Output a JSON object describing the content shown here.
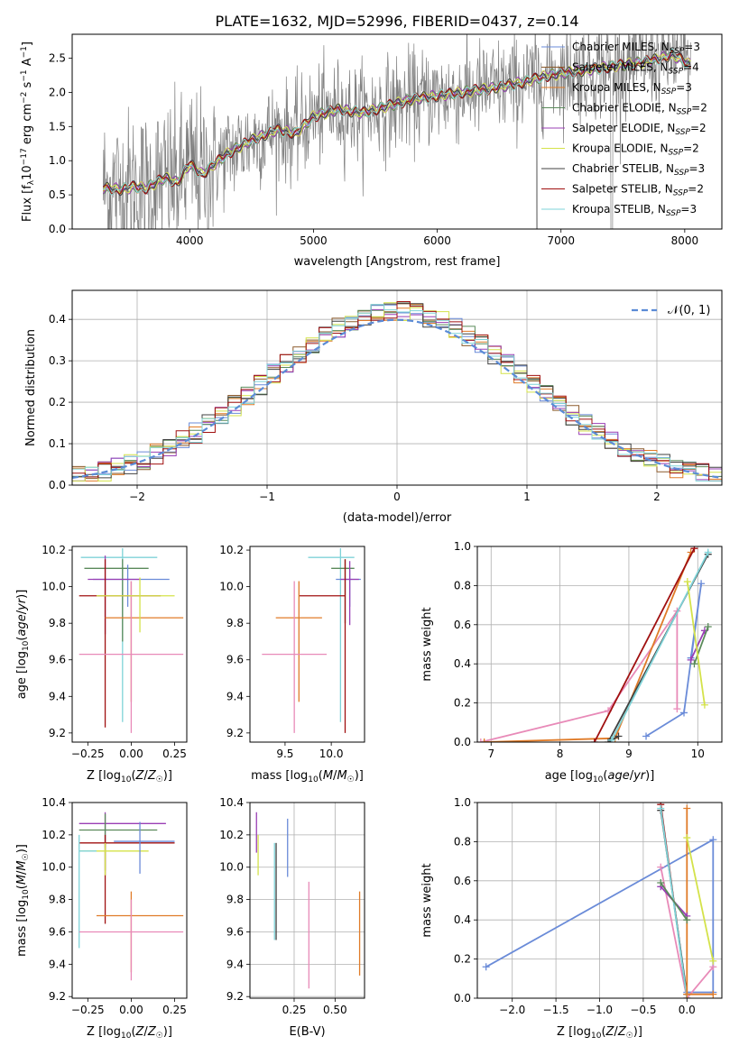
{
  "figure_title": "PLATE=1632, MJD=52996, FIBERID=0437, z=0.14",
  "colors": {
    "chabrier_miles": "#6a8bd8",
    "salpeter_miles": "#8b5a2b",
    "kroupa_miles": "#e07b28",
    "chabrier_elodie": "#5a8a5a",
    "salpeter_elodie": "#9a3fb5",
    "kroupa_elodie": "#d4e24a",
    "chabrier_stelib": "#404040",
    "salpeter_stelib": "#a01010",
    "kroupa_stelib": "#7fd3d8",
    "pink": "#e88ab8",
    "data": "#808080",
    "normal": "#5b8bd6"
  },
  "legend_main": [
    {
      "label": "Chabrier MILES, N",
      "sub": "SSP",
      "tail": "=3",
      "color": "#6a8bd8"
    },
    {
      "label": "Salpeter MILES, N",
      "sub": "SSP",
      "tail": "=4",
      "color": "#8b5a2b"
    },
    {
      "label": "Kroupa MILES, N",
      "sub": "SSP",
      "tail": "=3",
      "color": "#e07b28"
    },
    {
      "label": "Chabrier ELODIE, N",
      "sub": "SSP",
      "tail": "=2",
      "color": "#5a8a5a"
    },
    {
      "label": "Salpeter ELODIE, N",
      "sub": "SSP",
      "tail": "=2",
      "color": "#9a3fb5"
    },
    {
      "label": "Kroupa ELODIE, N",
      "sub": "SSP",
      "tail": "=2",
      "color": "#d4e24a"
    },
    {
      "label": "Chabrier STELIB, N",
      "sub": "SSP",
      "tail": "=3",
      "color": "#404040"
    },
    {
      "label": "Salpeter STELIB, N",
      "sub": "SSP",
      "tail": "=2",
      "color": "#a01010"
    },
    {
      "label": "Kroupa STELIB, N",
      "sub": "SSP",
      "tail": "=3",
      "color": "#7fd3d8"
    }
  ],
  "legend_hist": "𝒩(0, 1)",
  "chart_data": [
    {
      "id": "spectrum",
      "type": "line",
      "xlabel": "wavelength [Angstrom, rest frame]",
      "ylabel": "Flux [f_λ 10^-17 erg cm^-2 s^-1 A^-1]",
      "xlim": [
        3050,
        8300
      ],
      "ylim": [
        0,
        2.85
      ],
      "xticks": [
        4000,
        5000,
        6000,
        7000,
        8000
      ],
      "yticks": [
        0.0,
        0.5,
        1.0,
        1.5,
        2.0,
        2.5
      ],
      "grid": false,
      "legend_position": "upper right",
      "model_anchors": {
        "x": [
          3300,
          3450,
          3550,
          3650,
          3800,
          3900,
          4000,
          4100,
          4300,
          4500,
          4700,
          4860,
          5000,
          5200,
          5400,
          5600,
          5800,
          6000,
          6200,
          6400,
          6563,
          6700,
          6900,
          7100,
          7300,
          7500,
          7700,
          7900,
          8050
        ],
        "y": [
          0.6,
          0.58,
          0.62,
          0.6,
          0.75,
          0.68,
          0.95,
          0.8,
          1.1,
          1.3,
          1.45,
          1.4,
          1.65,
          1.75,
          1.7,
          1.8,
          1.9,
          1.95,
          2.0,
          2.05,
          2.1,
          2.15,
          2.25,
          2.3,
          2.35,
          2.4,
          2.45,
          2.55,
          2.4
        ]
      },
      "data_noise": 0.45
    },
    {
      "id": "residual_hist",
      "type": "line",
      "xlabel": "(data-model)/error",
      "ylabel": "Normed distribution",
      "xlim": [
        -2.5,
        2.5
      ],
      "ylim": [
        0,
        0.47
      ],
      "xticks": [
        -2,
        -1,
        0,
        1,
        2
      ],
      "yticks": [
        0.0,
        0.1,
        0.2,
        0.3,
        0.4
      ],
      "grid": true,
      "legend_position": "upper right",
      "bin_width": 0.1,
      "bins_from": -2.5,
      "bins_to": 2.5
    },
    {
      "id": "age_vs_Z",
      "type": "scatter",
      "xlabel": "Z [log10(Z/Z☉)]",
      "ylabel": "age [log10(age/yr)]",
      "xlim": [
        -0.34,
        0.32
      ],
      "ylim": [
        9.15,
        10.22
      ],
      "xticks": [
        -0.25,
        0.0,
        0.25
      ],
      "yticks": [
        9.2,
        9.4,
        9.6,
        9.8,
        10.0,
        10.2
      ],
      "grid": false,
      "errorbars": [
        {
          "series": "kroupa_stelib",
          "x": -0.05,
          "y": 10.16,
          "xerr": [
            0.24,
            0.2
          ],
          "yerr": [
            0.9,
            0.05
          ]
        },
        {
          "series": "chabrier_elodie",
          "x": -0.05,
          "y": 10.1,
          "xerr": [
            0.22,
            0.15
          ],
          "yerr": [
            0.4,
            0.05
          ]
        },
        {
          "series": "chabrier_miles",
          "x": -0.02,
          "y": 10.04,
          "xerr": [
            0.2,
            0.24
          ],
          "yerr": [
            0.15,
            0.08
          ]
        },
        {
          "series": "salpeter_elodie",
          "x": -0.15,
          "y": 10.04,
          "xerr": [
            0.1,
            0.2
          ],
          "yerr": [
            0.3,
            0.13
          ]
        },
        {
          "series": "salpeter_stelib",
          "x": -0.15,
          "y": 9.95,
          "xerr": [
            0.15,
            0.32
          ],
          "yerr": [
            0.72,
            0.2
          ]
        },
        {
          "series": "kroupa_miles",
          "x": 0.0,
          "y": 9.83,
          "xerr": [
            0.15,
            0.3
          ],
          "yerr": [
            0.46,
            0.2
          ]
        },
        {
          "series": "pink",
          "x": 0.0,
          "y": 9.63,
          "xerr": [
            0.3,
            0.3
          ],
          "yerr": [
            0.43,
            0.4
          ]
        },
        {
          "series": "kroupa_elodie",
          "x": 0.05,
          "y": 9.95,
          "xerr": [
            0.25,
            0.2
          ],
          "yerr": [
            0.2,
            0.1
          ]
        }
      ]
    },
    {
      "id": "age_vs_mass",
      "type": "scatter",
      "xlabel": "mass [log10(M/M☉)]",
      "ylabel": "",
      "xlim": [
        9.12,
        10.36
      ],
      "ylim": [
        9.15,
        10.22
      ],
      "xticks": [
        9.5,
        10.0
      ],
      "yticks": [
        9.2,
        9.4,
        9.6,
        9.8,
        10.0,
        10.2
      ],
      "grid": false,
      "errorbars": [
        {
          "series": "kroupa_stelib",
          "x": 10.1,
          "y": 10.16,
          "xerr": [
            0.35,
            0.15
          ],
          "yerr": [
            0.9,
            0.05
          ]
        },
        {
          "series": "chabrier_elodie",
          "x": 10.15,
          "y": 10.1,
          "xerr": [
            0.15,
            0.1
          ],
          "yerr": [
            0.3,
            0.05
          ]
        },
        {
          "series": "chabrier_miles",
          "x": 10.2,
          "y": 10.04,
          "xerr": [
            0.15,
            0.12
          ],
          "yerr": [
            0.15,
            0.05
          ]
        },
        {
          "series": "salpeter_elodie",
          "x": 10.2,
          "y": 10.04,
          "xerr": [
            0.1,
            0.1
          ],
          "yerr": [
            0.25,
            0.1
          ]
        },
        {
          "series": "salpeter_stelib",
          "x": 10.15,
          "y": 9.95,
          "xerr": [
            0.5,
            0.0
          ],
          "yerr": [
            0.75,
            0.2
          ]
        },
        {
          "series": "kroupa_miles",
          "x": 9.65,
          "y": 9.83,
          "xerr": [
            0.25,
            0.25
          ],
          "yerr": [
            0.46,
            0.2
          ]
        },
        {
          "series": "pink",
          "x": 9.6,
          "y": 9.63,
          "xerr": [
            0.35,
            0.35
          ],
          "yerr": [
            0.43,
            0.4
          ]
        }
      ]
    },
    {
      "id": "weight_vs_age",
      "type": "line",
      "xlabel": "age [log10(age/yr)]",
      "ylabel": "mass weight",
      "xlim": [
        6.8,
        10.35
      ],
      "ylim": [
        0,
        1.0
      ],
      "xticks": [
        7,
        8,
        9,
        10
      ],
      "yticks": [
        0.0,
        0.2,
        0.4,
        0.6,
        0.8,
        1.0
      ],
      "grid": true,
      "series": [
        {
          "series": "pink",
          "x": [
            6.85,
            8.7,
            9.7,
            9.7
          ],
          "y": [
            0.0,
            0.16,
            0.67,
            0.17
          ]
        },
        {
          "series": "kroupa_miles",
          "x": [
            6.9,
            8.8,
            9.9
          ],
          "y": [
            0.0,
            0.02,
            0.97
          ]
        },
        {
          "series": "salpeter_stelib",
          "x": [
            8.5,
            9.95
          ],
          "y": [
            0.0,
            0.99
          ]
        },
        {
          "series": "chabrier_stelib",
          "x": [
            8.85,
            8.7,
            10.15
          ],
          "y": [
            0.03,
            0.0,
            0.96
          ]
        },
        {
          "series": "kroupa_stelib",
          "x": [
            8.75,
            10.15
          ],
          "y": [
            0.01,
            0.97
          ]
        },
        {
          "series": "chabrier_miles",
          "x": [
            9.25,
            9.8,
            10.05,
            9.9
          ],
          "y": [
            0.03,
            0.15,
            0.81,
            0.43
          ]
        },
        {
          "series": "salpeter_elodie",
          "x": [
            9.9,
            10.1
          ],
          "y": [
            0.42,
            0.57
          ]
        },
        {
          "series": "chabrier_elodie",
          "x": [
            9.95,
            10.15
          ],
          "y": [
            0.4,
            0.59
          ]
        },
        {
          "series": "kroupa_elodie",
          "x": [
            9.85,
            10.1
          ],
          "y": [
            0.82,
            0.19
          ]
        }
      ]
    },
    {
      "id": "mass_vs_Z",
      "type": "scatter",
      "xlabel": "Z [log10(Z/Z☉)]",
      "ylabel": "mass [log10(M/M☉)]",
      "xlim": [
        -0.34,
        0.32
      ],
      "ylim": [
        9.19,
        10.4
      ],
      "xticks": [
        -0.25,
        0.0,
        0.25
      ],
      "yticks": [
        9.2,
        9.4,
        9.6,
        9.8,
        10.0,
        10.2,
        10.4
      ],
      "grid": false,
      "errorbars": [
        {
          "series": "salpeter_elodie",
          "x": -0.15,
          "y": 10.27,
          "xerr": [
            0.15,
            0.35
          ],
          "yerr": [
            0.15,
            0.07
          ]
        },
        {
          "series": "chabrier_elodie",
          "x": -0.15,
          "y": 10.23,
          "xerr": [
            0.15,
            0.3
          ],
          "yerr": [
            0.25,
            0.1
          ]
        },
        {
          "series": "salpeter_stelib",
          "x": -0.15,
          "y": 10.15,
          "xerr": [
            0.15,
            0.4
          ],
          "yerr": [
            0.5,
            0.05
          ]
        },
        {
          "series": "kroupa_elodie",
          "x": -0.15,
          "y": 10.1,
          "xerr": [
            0.15,
            0.25
          ],
          "yerr": [
            0.15,
            0.05
          ]
        },
        {
          "series": "chabrier_miles",
          "x": 0.05,
          "y": 10.16,
          "xerr": [
            0.15,
            0.2
          ],
          "yerr": [
            0.2,
            0.12
          ]
        },
        {
          "series": "kroupa_stelib",
          "x": -0.3,
          "y": 10.1,
          "xerr": [
            0.0,
            0.1
          ],
          "yerr": [
            0.6,
            0.1
          ]
        },
        {
          "series": "kroupa_miles",
          "x": 0.0,
          "y": 9.7,
          "xerr": [
            0.2,
            0.3
          ],
          "yerr": [
            0.35,
            0.15
          ]
        },
        {
          "series": "pink",
          "x": 0.0,
          "y": 9.6,
          "xerr": [
            0.3,
            0.3
          ],
          "yerr": [
            0.3,
            0.2
          ]
        }
      ]
    },
    {
      "id": "mass_vs_ebv",
      "type": "scatter",
      "xlabel": "E(B-V)",
      "ylabel": "",
      "xlim": [
        -0.02,
        0.68
      ],
      "ylim": [
        9.19,
        10.4
      ],
      "xticks": [
        0.25,
        0.5
      ],
      "yticks": [
        9.2,
        9.4,
        9.6,
        9.8,
        10.0,
        10.2,
        10.4
      ],
      "grid": true,
      "errorbars": [
        {
          "series": "salpeter_elodie",
          "x": 0.02,
          "y": 10.24,
          "xerr": [
            0,
            0
          ],
          "yerr": [
            0.15,
            0.1
          ]
        },
        {
          "series": "kroupa_elodie",
          "x": 0.03,
          "y": 10.1,
          "xerr": [
            0,
            0
          ],
          "yerr": [
            0.15,
            0.1
          ]
        },
        {
          "series": "chabrier_miles",
          "x": 0.21,
          "y": 10.12,
          "xerr": [
            0,
            0
          ],
          "yerr": [
            0.18,
            0.18
          ]
        },
        {
          "series": "kroupa_stelib",
          "x": 0.13,
          "y": 9.85,
          "xerr": [
            0,
            0
          ],
          "yerr": [
            0.3,
            0.3
          ]
        },
        {
          "series": "chabrier_stelib",
          "x": 0.14,
          "y": 9.85,
          "xerr": [
            0,
            0
          ],
          "yerr": [
            0.3,
            0.3
          ]
        },
        {
          "series": "pink",
          "x": 0.34,
          "y": 9.58,
          "xerr": [
            0,
            0
          ],
          "yerr": [
            0.33,
            0.33
          ]
        },
        {
          "series": "kroupa_miles",
          "x": 0.65,
          "y": 9.59,
          "xerr": [
            0,
            0
          ],
          "yerr": [
            0.26,
            0.26
          ]
        }
      ]
    },
    {
      "id": "weight_vs_Z",
      "type": "line",
      "xlabel": "Z [log10(Z/Z☉)]",
      "ylabel": "mass weight",
      "xlim": [
        -2.4,
        0.4
      ],
      "ylim": [
        0,
        1.0
      ],
      "xticks": [
        -2.0,
        -1.5,
        -1.0,
        -0.5,
        0.0
      ],
      "yticks": [
        0.0,
        0.2,
        0.4,
        0.6,
        0.8,
        1.0
      ],
      "grid": true,
      "series": [
        {
          "series": "chabrier_miles",
          "x": [
            -2.3,
            0.3,
            0.3,
            0.0
          ],
          "y": [
            0.16,
            0.81,
            0.03,
            0.03
          ]
        },
        {
          "series": "pink",
          "x": [
            -0.3,
            0.0,
            0.3
          ],
          "y": [
            0.67,
            0.0,
            0.16
          ]
        },
        {
          "series": "salpeter_stelib",
          "x": [
            -0.3,
            0.0
          ],
          "y": [
            0.99,
            0.0
          ]
        },
        {
          "series": "chabrier_stelib",
          "x": [
            -0.3,
            0.0
          ],
          "y": [
            0.96,
            0.02
          ]
        },
        {
          "series": "kroupa_stelib",
          "x": [
            -0.3,
            0.0
          ],
          "y": [
            0.97,
            0.0
          ]
        },
        {
          "series": "kroupa_miles",
          "x": [
            0.0,
            0.0,
            0.3
          ],
          "y": [
            0.97,
            0.02,
            0.02
          ]
        },
        {
          "series": "salpeter_elodie",
          "x": [
            -0.3,
            0.0
          ],
          "y": [
            0.57,
            0.42
          ]
        },
        {
          "series": "chabrier_elodie",
          "x": [
            -0.3,
            0.0
          ],
          "y": [
            0.59,
            0.4
          ]
        },
        {
          "series": "kroupa_elodie",
          "x": [
            0.0,
            0.3
          ],
          "y": [
            0.82,
            0.19
          ]
        }
      ]
    }
  ]
}
